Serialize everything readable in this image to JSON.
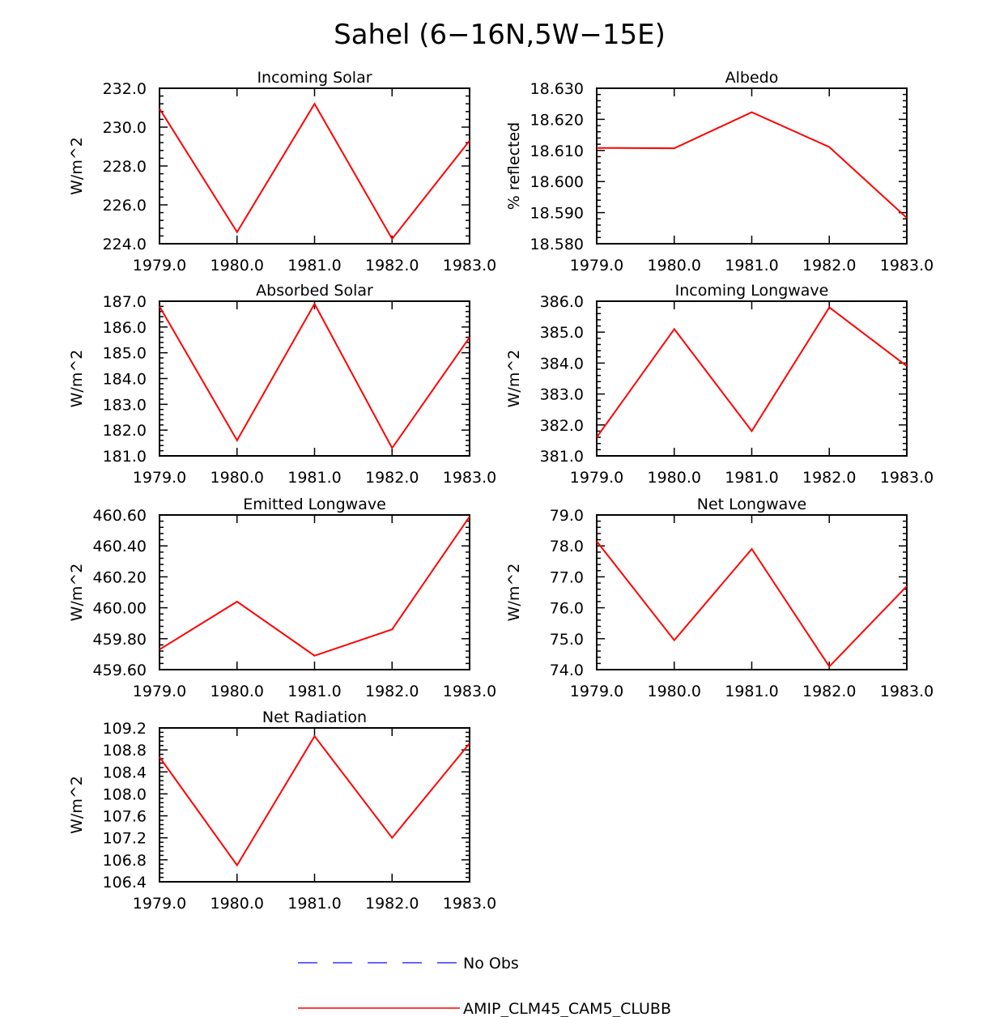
{
  "figure": {
    "title": "Sahel (6−16N,5W−15E)",
    "legend": [
      {
        "label": "No Obs",
        "color": "#6666ff",
        "style": "dashed"
      },
      {
        "label": "AMIP_CLM45_CAM5_CLUBB",
        "color": "#ff0000",
        "style": "solid"
      }
    ]
  },
  "chart_data": [
    {
      "type": "line",
      "title": "Incoming Solar",
      "ylabel": "W/m^2",
      "x": [
        1979,
        1980,
        1981,
        1982,
        1983
      ],
      "xlim": [
        1979,
        1983
      ],
      "xticks": [
        "1979.0",
        "1980.0",
        "1981.0",
        "1982.0",
        "1983.0"
      ],
      "ylim": [
        224.0,
        232.0
      ],
      "yticks": [
        "224.0",
        "226.0",
        "228.0",
        "230.0",
        "232.0"
      ],
      "series": [
        {
          "name": "AMIP_CLM45_CAM5_CLUBB",
          "color": "#ff0000",
          "values": [
            230.95,
            224.6,
            231.2,
            224.25,
            229.3
          ]
        }
      ]
    },
    {
      "type": "line",
      "title": "Albedo",
      "ylabel": "% reflected",
      "x": [
        1979,
        1980,
        1981,
        1982,
        1983
      ],
      "xlim": [
        1979,
        1983
      ],
      "xticks": [
        "1979.0",
        "1980.0",
        "1981.0",
        "1982.0",
        "1983.0"
      ],
      "ylim": [
        18.58,
        18.63
      ],
      "yticks": [
        "18.580",
        "18.590",
        "18.600",
        "18.610",
        "18.620",
        "18.630"
      ],
      "series": [
        {
          "name": "AMIP_CLM45_CAM5_CLUBB",
          "color": "#ff0000",
          "values": [
            18.6108,
            18.6107,
            18.6223,
            18.6111,
            18.5883
          ]
        }
      ]
    },
    {
      "type": "line",
      "title": "Absorbed Solar",
      "ylabel": "W/m^2",
      "x": [
        1979,
        1980,
        1981,
        1982,
        1983
      ],
      "xlim": [
        1979,
        1983
      ],
      "xticks": [
        "1979.0",
        "1980.0",
        "1981.0",
        "1982.0",
        "1983.0"
      ],
      "ylim": [
        181.0,
        187.0
      ],
      "yticks": [
        "181.0",
        "182.0",
        "183.0",
        "184.0",
        "185.0",
        "186.0",
        "187.0"
      ],
      "series": [
        {
          "name": "AMIP_CLM45_CAM5_CLUBB",
          "color": "#ff0000",
          "values": [
            186.8,
            181.6,
            186.9,
            181.3,
            185.6
          ]
        }
      ]
    },
    {
      "type": "line",
      "title": "Incoming Longwave",
      "ylabel": "W/m^2",
      "x": [
        1979,
        1980,
        1981,
        1982,
        1983
      ],
      "xlim": [
        1979,
        1983
      ],
      "xticks": [
        "1979.0",
        "1980.0",
        "1981.0",
        "1982.0",
        "1983.0"
      ],
      "ylim": [
        381.0,
        386.0
      ],
      "yticks": [
        "381.0",
        "382.0",
        "383.0",
        "384.0",
        "385.0",
        "386.0"
      ],
      "series": [
        {
          "name": "AMIP_CLM45_CAM5_CLUBB",
          "color": "#ff0000",
          "values": [
            381.6,
            385.1,
            381.8,
            385.8,
            383.9
          ]
        }
      ]
    },
    {
      "type": "line",
      "title": "Emitted Longwave",
      "ylabel": "W/m^2",
      "x": [
        1979,
        1980,
        1981,
        1982,
        1983
      ],
      "xlim": [
        1979,
        1983
      ],
      "xticks": [
        "1979.0",
        "1980.0",
        "1981.0",
        "1982.0",
        "1983.0"
      ],
      "ylim": [
        459.6,
        460.6
      ],
      "yticks": [
        "459.60",
        "459.80",
        "460.00",
        "460.20",
        "460.40",
        "460.60"
      ],
      "series": [
        {
          "name": "AMIP_CLM45_CAM5_CLUBB",
          "color": "#ff0000",
          "values": [
            459.73,
            460.04,
            459.69,
            459.86,
            460.59
          ]
        }
      ]
    },
    {
      "type": "line",
      "title": "Net Longwave",
      "ylabel": "W/m^2",
      "x": [
        1979,
        1980,
        1981,
        1982,
        1983
      ],
      "xlim": [
        1979,
        1983
      ],
      "xticks": [
        "1979.0",
        "1980.0",
        "1981.0",
        "1982.0",
        "1983.0"
      ],
      "ylim": [
        74.0,
        79.0
      ],
      "yticks": [
        "74.0",
        "75.0",
        "76.0",
        "77.0",
        "78.0",
        "79.0"
      ],
      "series": [
        {
          "name": "AMIP_CLM45_CAM5_CLUBB",
          "color": "#ff0000",
          "values": [
            78.15,
            74.95,
            77.9,
            74.1,
            76.7
          ]
        }
      ]
    },
    {
      "type": "line",
      "title": "Net Radiation",
      "ylabel": "W/m^2",
      "x": [
        1979,
        1980,
        1981,
        1982,
        1983
      ],
      "xlim": [
        1979,
        1983
      ],
      "xticks": [
        "1979.0",
        "1980.0",
        "1981.0",
        "1982.0",
        "1983.0"
      ],
      "ylim": [
        106.4,
        109.2
      ],
      "yticks": [
        "106.4",
        "106.8",
        "107.2",
        "107.6",
        "108.0",
        "108.4",
        "108.8",
        "109.2"
      ],
      "series": [
        {
          "name": "AMIP_CLM45_CAM5_CLUBB",
          "color": "#ff0000",
          "values": [
            108.67,
            106.7,
            109.05,
            107.2,
            108.92
          ]
        }
      ]
    }
  ]
}
